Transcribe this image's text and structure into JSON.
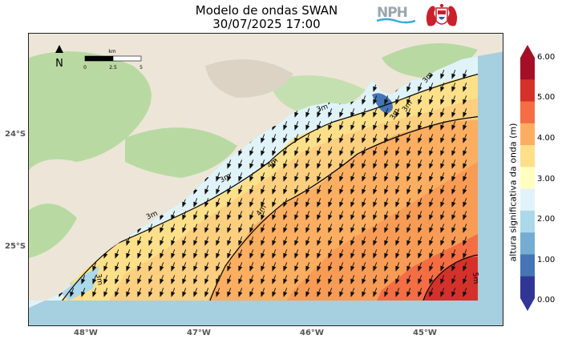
{
  "title": {
    "line1": "Modelo de ondas SWAN",
    "line2": "30/07/2025 17:00"
  },
  "logos": {
    "nph_text": "NPH"
  },
  "map": {
    "north_label": "N",
    "scalebar": {
      "unit_label": "km",
      "tick_labels": [
        "0",
        "2.5",
        "5"
      ]
    },
    "lat_labels": [
      "24°S",
      "25°S"
    ],
    "lon_labels": [
      "48°W",
      "47°W",
      "46°W",
      "45°W"
    ],
    "contour_labels": [
      "3m",
      "3m",
      "3m",
      "3m",
      "3m",
      "3m",
      "4m",
      "4m",
      "5m",
      "3m"
    ],
    "colors": {
      "ocean": "#a6cfe0",
      "land": "#ede6d8",
      "forest": "#b9d9a3"
    }
  },
  "colorbar": {
    "label": "altura significativa da onda (m)",
    "ticks": [
      "6.00",
      "5.00",
      "4.00",
      "3.00",
      "2.00",
      "1.00",
      "0.00"
    ],
    "colors": [
      "#a50f26",
      "#d5312b",
      "#f46d43",
      "#fdae61",
      "#fee08b",
      "#ffffbf",
      "#e0f3f8",
      "#abd9e9",
      "#74add1",
      "#4575b4",
      "#313695"
    ]
  }
}
